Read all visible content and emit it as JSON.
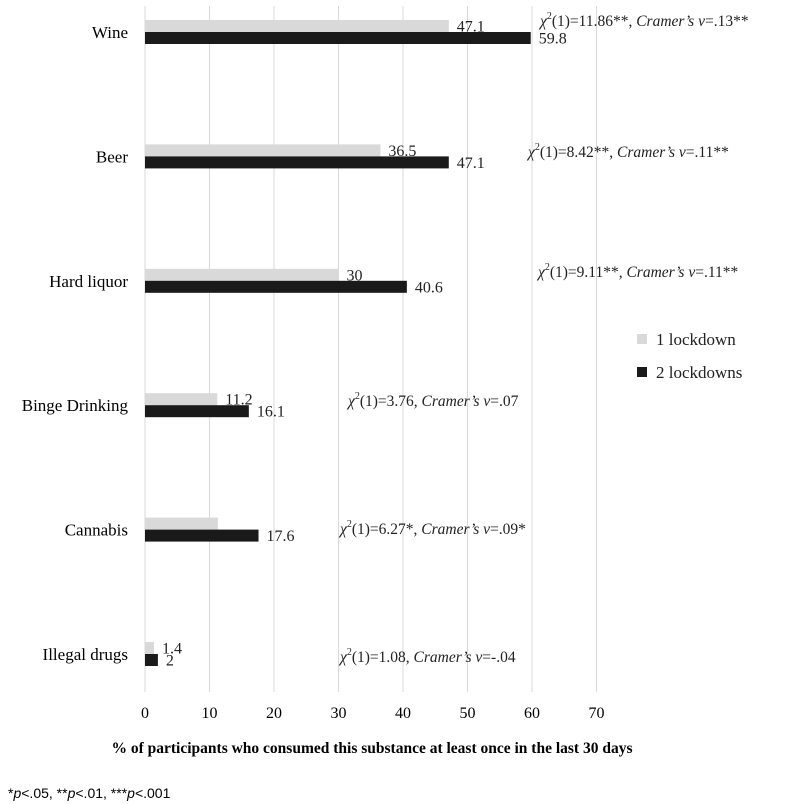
{
  "chart_data": {
    "type": "bar",
    "orientation": "horizontal",
    "categories": [
      "Wine",
      "Beer",
      "Hard liquor",
      "Binge Drinking",
      "Cannabis",
      "Illegal drugs"
    ],
    "series": [
      {
        "name": "1 lockdown",
        "color": "#d9d9d9",
        "values": [
          47.1,
          36.5,
          30,
          11.2,
          11.3,
          1.4
        ],
        "labels": [
          "47.1",
          "36.5",
          "30",
          "11.2",
          "",
          "1.4"
        ]
      },
      {
        "name": "2 lockdowns",
        "color": "#1a1a1a",
        "values": [
          59.8,
          47.1,
          40.6,
          16.1,
          17.6,
          2
        ],
        "labels": [
          "59.8",
          "47.1",
          "40.6",
          "16.1",
          "17.6",
          "2"
        ]
      }
    ],
    "xlim": [
      0,
      70
    ],
    "xticks": [
      "0",
      "10",
      "20",
      "30",
      "40",
      "50",
      "60",
      "70"
    ],
    "xlabel": "% of participants who consumed this substance at least once in the last 30 days",
    "legend_position": "right",
    "grid": "vertical",
    "annotations": [
      {
        "stat": "11.86**",
        "effect": "=.13**"
      },
      {
        "stat": "8.42**",
        "effect": "=.11**"
      },
      {
        "stat": "9.11**",
        "effect": "=.11**"
      },
      {
        "stat": "3.76",
        "effect": "=.07"
      },
      {
        "stat": "6.27*",
        "effect": "=.09*"
      },
      {
        "stat": "1.08",
        "effect": "=-.04"
      }
    ],
    "annotation_parts": {
      "chi": "χ",
      "sup": "2",
      "df": "(1)=",
      "sep": ", ",
      "cramer": "Cramer’s v"
    }
  },
  "footnote": {
    "p1": "*",
    "p1i": "p",
    "p1v": "<.05, ",
    "p2": "**",
    "p2i": "p",
    "p2v": "<.01, ",
    "p3": "***",
    "p3i": "p",
    "p3v": "<.001"
  }
}
